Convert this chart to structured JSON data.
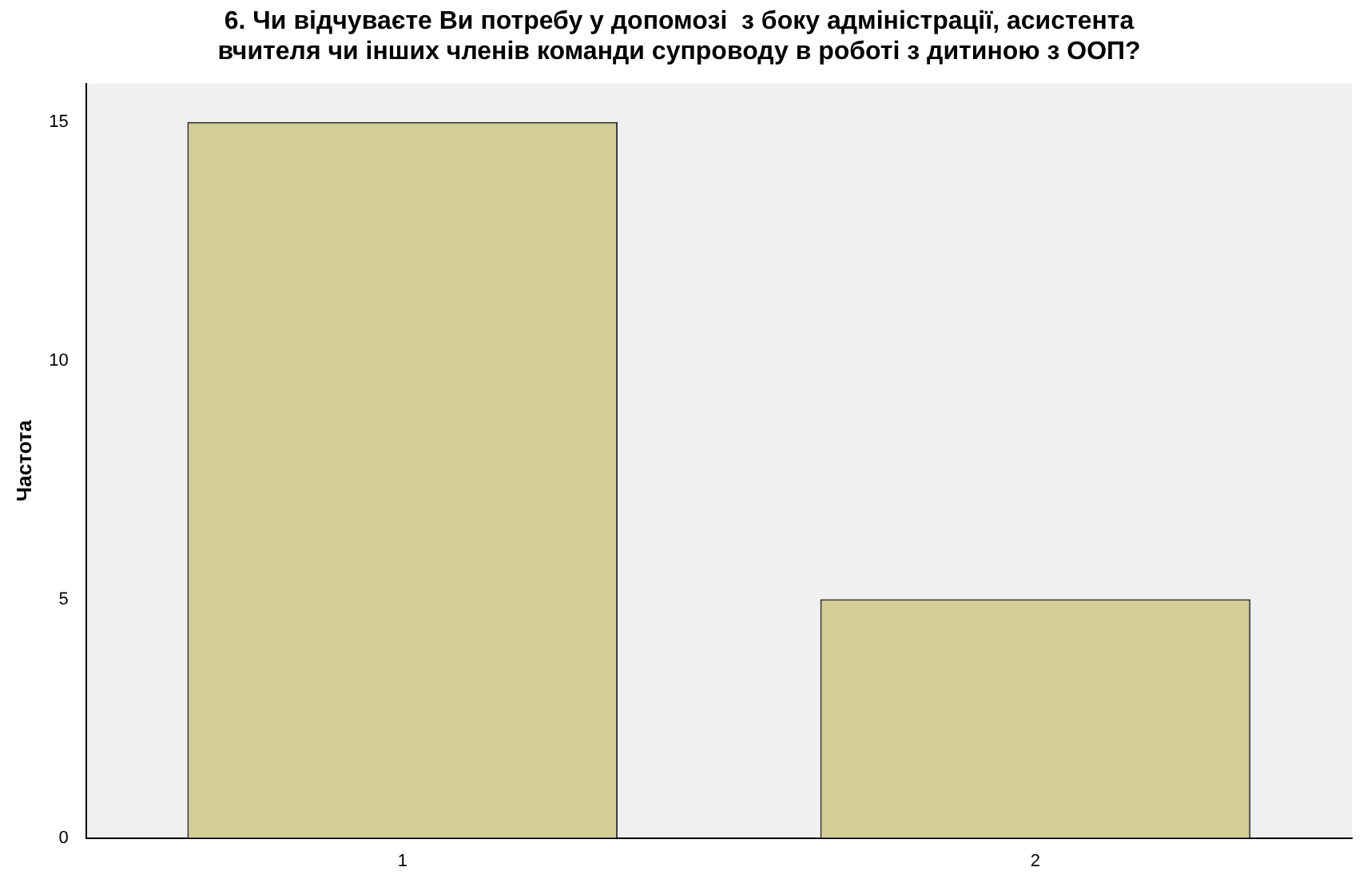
{
  "chart_data": {
    "type": "bar",
    "title": "6. Чи відчуваєте Ви потребу у допомозі  з боку адміністрації, асистента\nвчителя чи інших членів команди супроводу в роботі з дитиною з ООП?",
    "ylabel": "Частота",
    "categories": [
      "1",
      "2"
    ],
    "values": [
      15,
      5
    ],
    "color": "#d3ce97",
    "ylim": [
      0,
      15.8
    ],
    "yticks": [
      0,
      5,
      10,
      15
    ],
    "grid": false,
    "legend": false
  }
}
